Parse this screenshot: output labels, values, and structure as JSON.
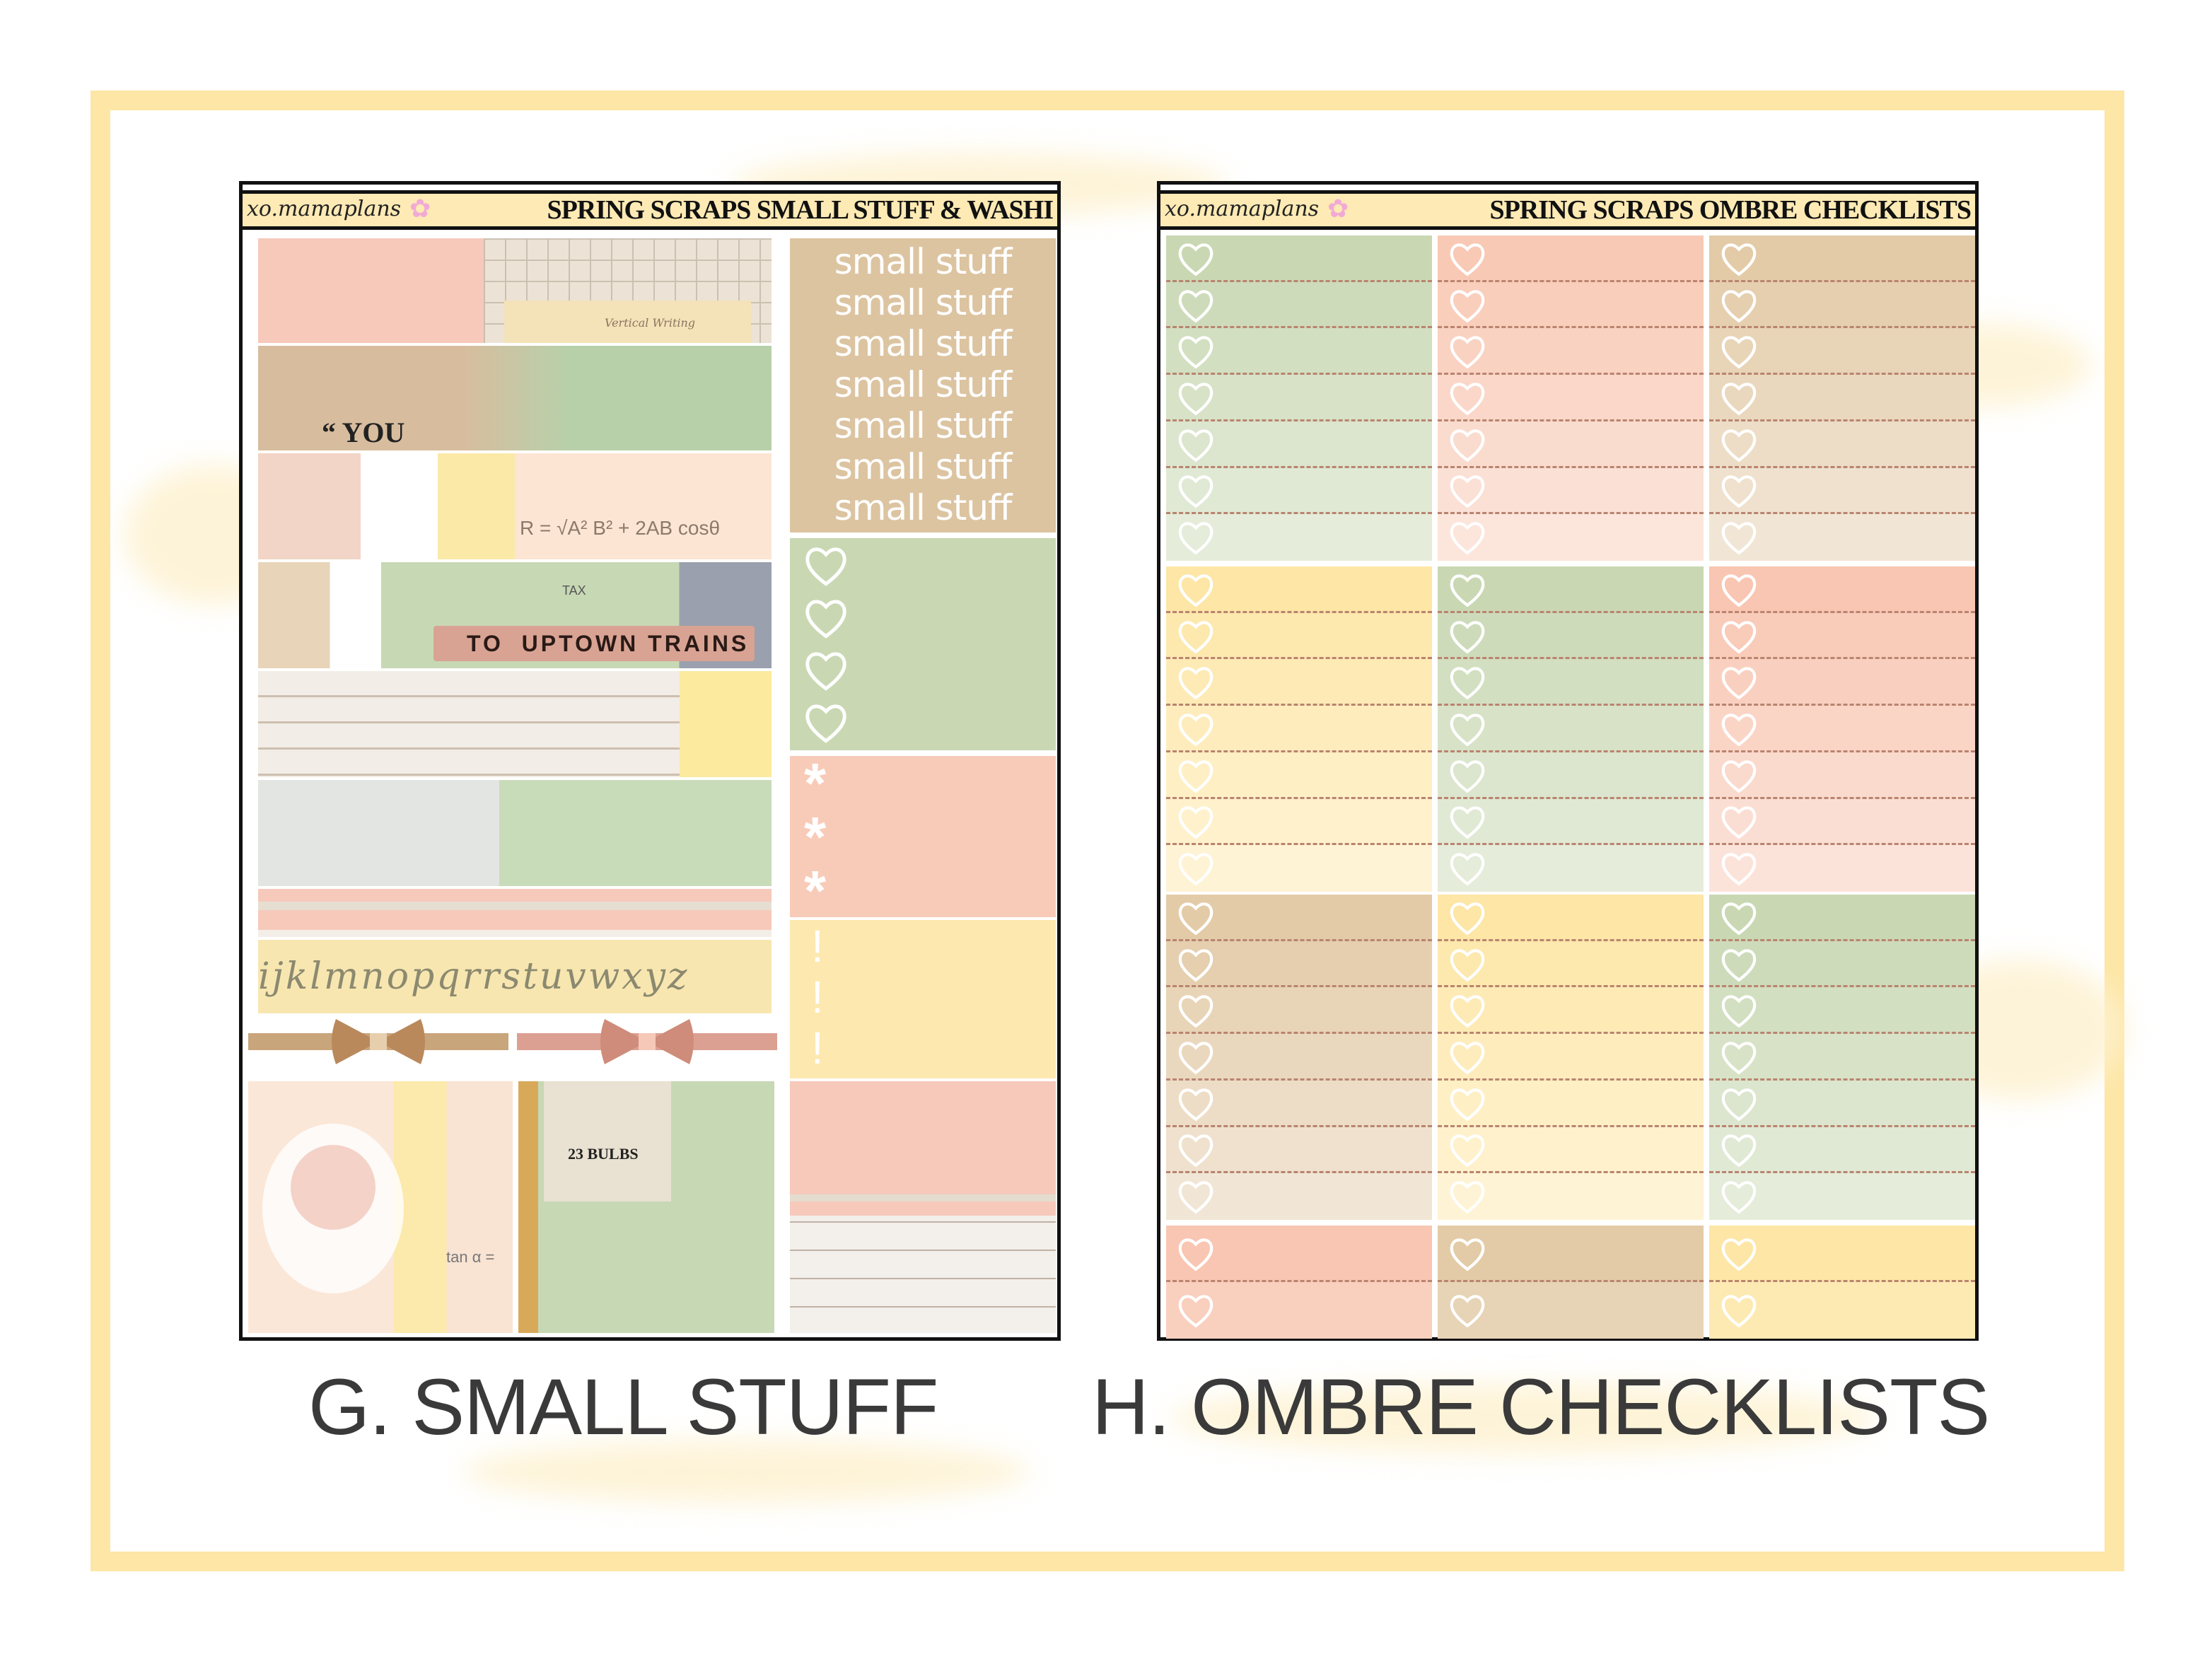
{
  "brand_logo": "xo.mamaplans",
  "sheet_g": {
    "title": "SPRING SCRAPS SMALL STUFF & WASHI",
    "small_stuff": [
      "small stuff",
      "small stuff",
      "small stuff",
      "small stuff",
      "small stuff",
      "small stuff",
      "small stuff"
    ],
    "washi_texts": {
      "quote": "“ YOU",
      "vertical": "Vertical Writing",
      "tax": "TAX",
      "trains": "TO  UPTOWN TRAINS",
      "formula": "R = √A² B² + 2AB cosθ",
      "alphabet": "ijklmnopqrrstuvwxyz",
      "bulbs": "23 BULBS",
      "tan": "tan α ="
    },
    "heart_count": 4,
    "asterisks": [
      "*",
      "*",
      "*"
    ],
    "exclaims": [
      "!",
      "!",
      "!"
    ],
    "colors": {
      "tan": "#dcc4a1",
      "green": "#c9d8b3",
      "pink": "#f8cbb9",
      "yellow": "#fde8b0"
    }
  },
  "sheet_h": {
    "title": "SPRING SCRAPS OMBRE CHECKLISTS",
    "grid": [
      [
        "#c9d8b3",
        "#f8c9b5",
        "#e3cba8"
      ],
      [
        "#fde6a6",
        "#c9d8b3",
        "#f8c6b2"
      ],
      [
        "#e3cba8",
        "#fde6a6",
        "#c9d8b3"
      ],
      [
        "#f8c6b2",
        "#e3cba8",
        "#fde6a6"
      ]
    ],
    "rows_per_block": [
      7,
      7,
      7,
      2
    ]
  },
  "captions": {
    "g": "G. SMALL STUFF",
    "h": "H. OMBRE CHECKLISTS"
  }
}
